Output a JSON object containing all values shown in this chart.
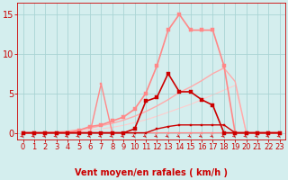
{
  "title": "",
  "xlabel": "Vent moyen/en rafales ( km/h )",
  "ylabel": "",
  "background_color": "#d4eeee",
  "grid_color": "#aad4d4",
  "xlim": [
    -0.5,
    23.5
  ],
  "ylim": [
    -0.8,
    16.5
  ],
  "yticks": [
    0,
    5,
    10,
    15
  ],
  "xticks": [
    0,
    1,
    2,
    3,
    4,
    5,
    6,
    7,
    8,
    9,
    10,
    11,
    12,
    13,
    14,
    15,
    16,
    17,
    18,
    19,
    20,
    21,
    22,
    23
  ],
  "series": [
    {
      "x": [
        0,
        1,
        2,
        3,
        4,
        5,
        6,
        7,
        8,
        9,
        10,
        11,
        12,
        13,
        14,
        15,
        16,
        17,
        18,
        19,
        20,
        21,
        22,
        23
      ],
      "y": [
        0,
        0,
        0,
        0,
        0,
        0,
        0,
        0,
        0,
        0,
        0,
        0,
        0.5,
        0.8,
        1.0,
        1.0,
        1.0,
        1.0,
        1.0,
        0,
        0,
        0,
        0,
        0
      ],
      "color": "#cc0000",
      "linewidth": 1.0,
      "marker": "s",
      "markersize": 2.0,
      "zorder": 5
    },
    {
      "x": [
        0,
        1,
        2,
        3,
        4,
        5,
        6,
        7,
        8,
        9,
        10,
        11,
        12,
        13,
        14,
        15,
        16,
        17,
        18,
        19,
        20,
        21,
        22,
        23
      ],
      "y": [
        0,
        0,
        0,
        0,
        0,
        0,
        0,
        0,
        0,
        0,
        0.5,
        4.0,
        4.5,
        7.5,
        5.2,
        5.2,
        4.2,
        3.5,
        0,
        0,
        0,
        0,
        0,
        0
      ],
      "color": "#cc0000",
      "linewidth": 1.2,
      "marker": "s",
      "markersize": 2.5,
      "zorder": 6
    },
    {
      "x": [
        0,
        1,
        2,
        3,
        4,
        5,
        6,
        7,
        8,
        9,
        10,
        11,
        12,
        13,
        14,
        15,
        16,
        17,
        18,
        19,
        20,
        21,
        22,
        23
      ],
      "y": [
        0,
        0,
        0,
        0,
        0,
        0,
        0,
        6.2,
        0,
        0,
        0,
        0,
        0,
        0,
        0,
        0,
        0,
        0,
        0,
        0,
        0,
        0,
        0,
        0
      ],
      "color": "#ff8888",
      "linewidth": 1.0,
      "marker": "s",
      "markersize": 2.0,
      "zorder": 4
    },
    {
      "x": [
        0,
        1,
        2,
        3,
        4,
        5,
        6,
        7,
        8,
        9,
        10,
        11,
        12,
        13,
        14,
        15,
        16,
        17,
        18,
        19,
        20,
        21,
        22,
        23
      ],
      "y": [
        0,
        0,
        0,
        0,
        0,
        0.3,
        0.8,
        1.0,
        1.5,
        2.0,
        3.0,
        5.0,
        8.5,
        13.0,
        15.0,
        13.0,
        13.0,
        13.0,
        8.5,
        0,
        0,
        0,
        0,
        0
      ],
      "color": "#ff8888",
      "linewidth": 1.2,
      "marker": "s",
      "markersize": 2.5,
      "zorder": 3
    },
    {
      "x": [
        0,
        1,
        2,
        3,
        4,
        5,
        6,
        7,
        8,
        9,
        10,
        11,
        12,
        13,
        14,
        15,
        16,
        17,
        18,
        19,
        20,
        21,
        22,
        23
      ],
      "y": [
        0,
        0,
        0,
        0.1,
        0.2,
        0.4,
        0.6,
        0.9,
        1.2,
        1.6,
        2.1,
        2.7,
        3.4,
        4.2,
        5.1,
        5.8,
        6.6,
        7.5,
        8.2,
        6.5,
        0,
        0,
        0,
        0
      ],
      "color": "#ffaaaa",
      "linewidth": 1.0,
      "marker": null,
      "markersize": 0,
      "zorder": 2
    },
    {
      "x": [
        0,
        1,
        2,
        3,
        4,
        5,
        6,
        7,
        8,
        9,
        10,
        11,
        12,
        13,
        14,
        15,
        16,
        17,
        18,
        19,
        20,
        21,
        22,
        23
      ],
      "y": [
        0,
        0,
        0,
        0.05,
        0.1,
        0.2,
        0.35,
        0.5,
        0.7,
        0.95,
        1.3,
        1.65,
        2.1,
        2.6,
        3.1,
        3.6,
        4.2,
        4.8,
        5.4,
        6.0,
        0,
        0,
        0,
        0
      ],
      "color": "#ffcccc",
      "linewidth": 0.8,
      "marker": null,
      "markersize": 0,
      "zorder": 1
    }
  ],
  "xlabel_color": "#cc0000",
  "xlabel_fontsize": 7,
  "tick_color": "#cc0000",
  "tick_fontsize": 6,
  "ytick_color": "#cc0000",
  "ytick_fontsize": 7
}
